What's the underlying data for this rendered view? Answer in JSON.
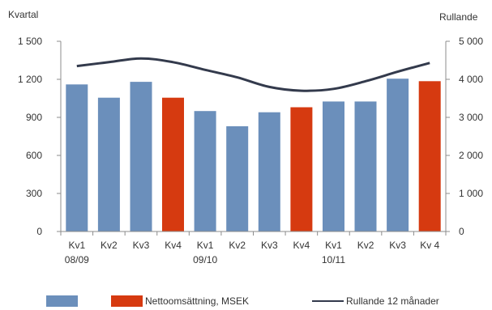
{
  "chart_data": {
    "type": "bar",
    "left_axis_title": "Kvartal",
    "right_axis_title": "Rullande",
    "categories": [
      "Kv1",
      "Kv2",
      "Kv3",
      "Kv4",
      "Kv1",
      "Kv2",
      "Kv3",
      "Kv4",
      "Kv1",
      "Kv2",
      "Kv3",
      "Kv 4"
    ],
    "year_labels": [
      {
        "index": 0,
        "label": "08/09"
      },
      {
        "index": 4,
        "label": "09/10"
      },
      {
        "index": 8,
        "label": "10/11"
      }
    ],
    "left_axis": {
      "min": 0,
      "max": 1500,
      "ticks": [
        0,
        300,
        600,
        900,
        1200,
        1500
      ],
      "tick_labels": [
        "0",
        "300",
        "600",
        "900",
        "1 200",
        "1 500"
      ]
    },
    "right_axis": {
      "min": 0,
      "max": 5000,
      "ticks": [
        0,
        1000,
        2000,
        3000,
        4000,
        5000
      ],
      "tick_labels": [
        "0",
        "1 000",
        "2 000",
        "3 000",
        "4 000",
        "5 000"
      ]
    },
    "bars": {
      "values": [
        1160,
        1055,
        1180,
        1055,
        950,
        830,
        940,
        980,
        1025,
        1025,
        1205,
        1185
      ],
      "highlight_indices": [
        3,
        7,
        11
      ]
    },
    "line": {
      "axis": "right",
      "values": [
        4350,
        4450,
        4550,
        4450,
        4250,
        4050,
        3800,
        3700,
        3750,
        3950,
        4200,
        4430
      ]
    },
    "legend": [
      {
        "kind": "bar",
        "color": "#6b8fbb",
        "label": ""
      },
      {
        "kind": "bar",
        "color": "#d63a10",
        "label": "Nettoomsättning, MSEK"
      },
      {
        "kind": "line",
        "color": "#333a4c",
        "label": "Rullande 12 månader"
      }
    ],
    "colors": {
      "bar": "#6b8fbb",
      "highlight": "#d63a10",
      "line": "#333a4c",
      "axis": "#8c8c8c"
    },
    "grid": false
  }
}
